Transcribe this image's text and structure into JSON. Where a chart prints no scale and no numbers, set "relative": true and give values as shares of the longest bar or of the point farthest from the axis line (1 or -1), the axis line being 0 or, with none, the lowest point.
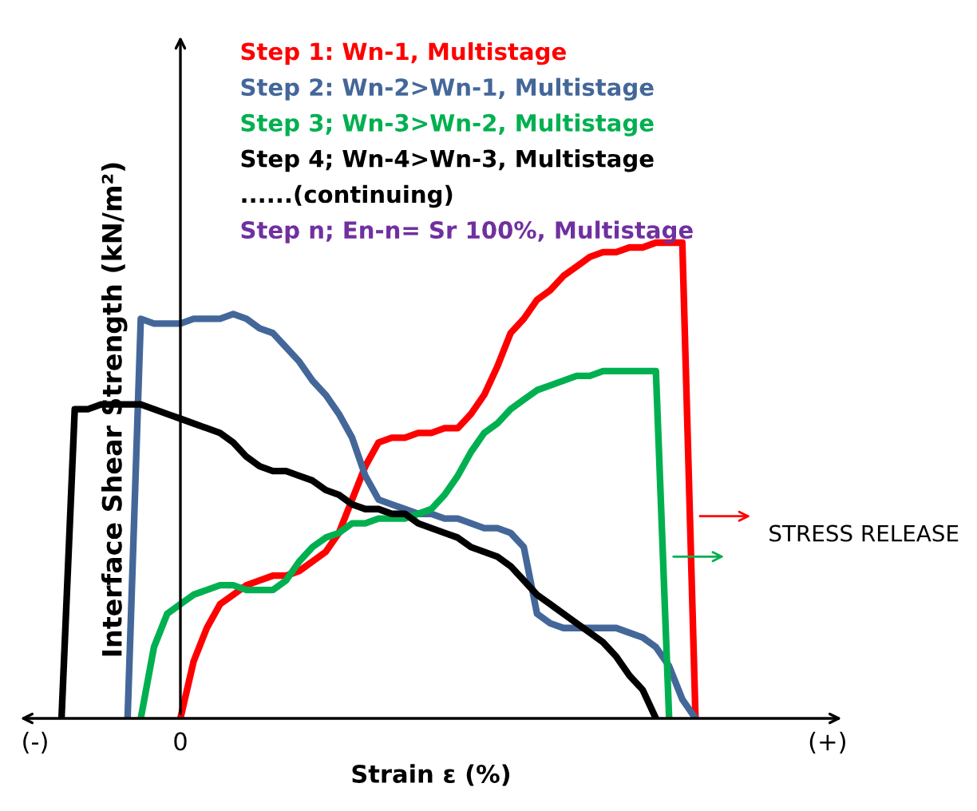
{
  "chart_data": {
    "type": "line",
    "relative": true,
    "xlabel": "Strain ε (%)",
    "ylabel": "Interface Shear Strength (kN/m²)",
    "categories": [
      "(-)",
      null,
      null,
      null,
      null,
      null,
      null,
      null,
      null,
      null,
      null,
      "0",
      null,
      null,
      null,
      null,
      null,
      null,
      null,
      null,
      null,
      null,
      null,
      null,
      null,
      null,
      null,
      null,
      null,
      null,
      null,
      null,
      null,
      null,
      null,
      null,
      null,
      null,
      null,
      null,
      null,
      null,
      null,
      null,
      null,
      null,
      null,
      null,
      null,
      null,
      null,
      null,
      null,
      null,
      null,
      null,
      null,
      null,
      null,
      null,
      "(+)"
    ],
    "grid": false,
    "marker": "none",
    "line_style": "solid",
    "series": [
      {
        "name": "Step 1: Wn-1, Multistage",
        "color": "#ff0000",
        "values": [
          null,
          null,
          null,
          null,
          null,
          null,
          null,
          null,
          null,
          null,
          null,
          0,
          0.12,
          0.19,
          0.24,
          0.26,
          0.28,
          0.29,
          0.3,
          0.3,
          0.31,
          0.33,
          0.35,
          0.39,
          0.46,
          0.53,
          0.58,
          0.59,
          0.59,
          0.6,
          0.6,
          0.61,
          0.61,
          0.64,
          0.68,
          0.74,
          0.81,
          0.84,
          0.88,
          0.9,
          0.93,
          0.95,
          0.97,
          0.98,
          0.98,
          0.99,
          0.99,
          1,
          1,
          1,
          0,
          null,
          null,
          null,
          null,
          null,
          null,
          null,
          null,
          null,
          null
        ]
      },
      {
        "name": "Step 2: Wn-2>Wn-1, Multistage",
        "color": "#44679a",
        "values": [
          null,
          null,
          null,
          null,
          null,
          null,
          null,
          0,
          0.84,
          0.83,
          0.83,
          0.83,
          0.84,
          0.84,
          0.84,
          0.85,
          0.84,
          0.82,
          0.81,
          0.78,
          0.75,
          0.71,
          0.68,
          0.64,
          0.59,
          0.51,
          0.46,
          0.45,
          0.44,
          0.43,
          0.43,
          0.42,
          0.42,
          0.41,
          0.4,
          0.4,
          0.39,
          0.36,
          0.22,
          0.2,
          0.19,
          0.19,
          0.19,
          0.19,
          0.19,
          0.18,
          0.17,
          0.15,
          0.11,
          0.04,
          0,
          null,
          null,
          null,
          null,
          null,
          null,
          null,
          null,
          null,
          null
        ]
      },
      {
        "name": "Step 3; Wn-3>Wn-2, Multistage",
        "color": "#00b050",
        "values": [
          null,
          null,
          null,
          null,
          null,
          null,
          null,
          null,
          0,
          0.15,
          0.22,
          0.24,
          0.26,
          0.27,
          0.28,
          0.28,
          0.27,
          0.27,
          0.27,
          0.29,
          0.33,
          0.36,
          0.38,
          0.39,
          0.41,
          0.41,
          0.42,
          0.42,
          0.42,
          0.43,
          0.44,
          0.47,
          0.51,
          0.56,
          0.6,
          0.62,
          0.65,
          0.67,
          0.69,
          0.7,
          0.71,
          0.72,
          0.72,
          0.73,
          0.73,
          0.73,
          0.73,
          0.73,
          0,
          null,
          null,
          null,
          null,
          null,
          null,
          null,
          null,
          null,
          null,
          null,
          null
        ]
      },
      {
        "name": "Step 4; Wn-4>Wn-3, Multistage",
        "color": "#000000",
        "values": [
          null,
          null,
          0,
          0.65,
          0.65,
          0.66,
          0.66,
          0.66,
          0.66,
          0.65,
          0.64,
          0.63,
          0.62,
          0.61,
          0.6,
          0.58,
          0.55,
          0.53,
          0.52,
          0.52,
          0.51,
          0.5,
          0.48,
          0.47,
          0.45,
          0.44,
          0.44,
          0.43,
          0.43,
          0.41,
          0.4,
          0.39,
          0.38,
          0.36,
          0.35,
          0.34,
          0.32,
          0.29,
          0.26,
          0.24,
          0.22,
          0.2,
          0.18,
          0.16,
          0.13,
          0.09,
          0.06,
          0,
          null,
          null,
          null,
          null,
          null,
          null,
          null,
          null,
          null,
          null,
          null,
          null,
          null
        ]
      }
    ],
    "annotations": [
      "......(continuing)",
      "Step n; En-n= Sr 100%, Multistage",
      "STRESS RELEASE"
    ]
  }
}
